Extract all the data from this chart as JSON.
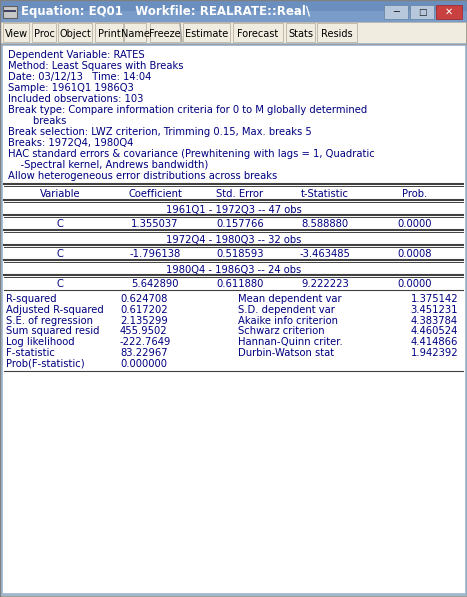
{
  "title_bar": "Equation: EQ01   Workfile: REALRATE::Real\\",
  "menu_items": [
    "View",
    "Proc",
    "Object",
    "Print",
    "Name",
    "Freeze",
    "Estimate",
    "Forecast",
    "Stats",
    "Resids"
  ],
  "header_lines": [
    "Dependent Variable: RATES",
    "Method: Least Squares with Breaks",
    "Date: 03/12/13   Time: 14:04",
    "Sample: 1961Q1 1986Q3",
    "Included observations: 103",
    "Break type: Compare information criteria for 0 to M globally determined",
    "        breaks",
    "Break selection: LWZ criterion, Trimming 0.15, Max. breaks 5",
    "Breaks: 1972Q4, 1980Q4",
    "HAC standard errors & covariance (Prewhitening with lags = 1, Quadratic",
    "    -Spectral kernel, Andrews bandwidth)",
    "Allow heterogeneous error distributions across breaks"
  ],
  "col_headers": [
    "Variable",
    "Coefficient",
    "Std. Error",
    "t-Statistic",
    "Prob."
  ],
  "col_positions": [
    60,
    155,
    240,
    325,
    415
  ],
  "segment1_label": "1961Q1 - 1972Q3 -- 47 obs",
  "segment1_rows": [
    [
      "C",
      "1.355037",
      "0.157766",
      "8.588880",
      "0.0000"
    ]
  ],
  "segment2_label": "1972Q4 - 1980Q3 -- 32 obs",
  "segment2_rows": [
    [
      "C",
      "-1.796138",
      "0.518593",
      "-3.463485",
      "0.0008"
    ]
  ],
  "segment3_label": "1980Q4 - 1986Q3 -- 24 obs",
  "segment3_rows": [
    [
      "C",
      "5.642890",
      "0.611880",
      "9.222223",
      "0.0000"
    ]
  ],
  "stats_left": [
    [
      "R-squared",
      "0.624708"
    ],
    [
      "Adjusted R-squared",
      "0.617202"
    ],
    [
      "S.E. of regression",
      "2.135299"
    ],
    [
      "Sum squared resid",
      "455.9502"
    ],
    [
      "Log likelihood",
      "-222.7649"
    ],
    [
      "F-statistic",
      "83.22967"
    ],
    [
      "Prob(F-statistic)",
      "0.000000"
    ]
  ],
  "stats_right": [
    [
      "Mean dependent var",
      "1.375142"
    ],
    [
      "S.D. dependent var",
      "3.451231"
    ],
    [
      "Akaike info criterion",
      "4.383784"
    ],
    [
      "Schwarz criterion",
      "4.460524"
    ],
    [
      "Hannan-Quinn criter.",
      "4.414866"
    ],
    [
      "Durbin-Watson stat",
      "1.942392"
    ]
  ],
  "titlebar_color": "#6a8fbe",
  "menu_bg": "#ece9d8",
  "content_bg": "#ffffff",
  "outer_bg": "#aca899",
  "text_color": "#000080",
  "figsize": [
    4.67,
    5.97
  ],
  "dpi": 100
}
